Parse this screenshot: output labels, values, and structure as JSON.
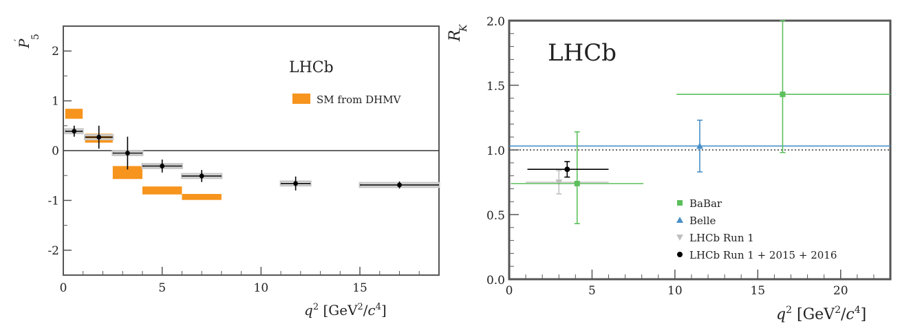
{
  "chart_data": [
    {
      "type": "scatter",
      "title": "",
      "experiment_label": "LHCb",
      "ylabel": "P′5",
      "xlabel": "q² [GeV²/c⁴]",
      "xlim": [
        0,
        19
      ],
      "ylim": [
        -2.5,
        2.5
      ],
      "x_ticks": [
        0,
        5,
        10,
        15
      ],
      "y_ticks": [
        -2,
        -1,
        0,
        1,
        2
      ],
      "zero_line": true,
      "legend": {
        "placement": "top-right",
        "entries": [
          "SM from DHMV"
        ]
      },
      "colors": {
        "data": "#000000",
        "sm_band": "#f7941d",
        "bin_box": "#c8c8c8"
      },
      "data": [
        {
          "x": 0.55,
          "x_lo": 0.1,
          "x_hi": 0.98,
          "y": 0.39,
          "y_err": 0.11
        },
        {
          "x": 1.8,
          "x_lo": 1.1,
          "x_hi": 2.5,
          "y": 0.27,
          "y_err": 0.23
        },
        {
          "x": 3.25,
          "x_lo": 2.5,
          "x_hi": 4.0,
          "y": -0.05,
          "y_err": 0.33
        },
        {
          "x": 5.0,
          "x_lo": 4.0,
          "x_hi": 6.0,
          "y": -0.31,
          "y_err": 0.13
        },
        {
          "x": 7.0,
          "x_lo": 6.0,
          "x_hi": 8.0,
          "y": -0.51,
          "y_err": 0.12
        },
        {
          "x": 11.75,
          "x_lo": 11.0,
          "x_hi": 12.5,
          "y": -0.66,
          "y_err": 0.14
        },
        {
          "x": 17.0,
          "x_lo": 15.0,
          "x_hi": 19.0,
          "y": -0.69,
          "y_err": 0.07
        }
      ],
      "sm_prediction": [
        {
          "x_lo": 0.1,
          "x_hi": 0.98,
          "y_lo": 0.64,
          "y_hi": 0.84
        },
        {
          "x_lo": 1.1,
          "x_hi": 2.5,
          "y_lo": 0.16,
          "y_hi": 0.34
        },
        {
          "x_lo": 2.5,
          "x_hi": 4.0,
          "y_lo": -0.57,
          "y_hi": -0.31
        },
        {
          "x_lo": 4.0,
          "x_hi": 6.0,
          "y_lo": -0.88,
          "y_hi": -0.72
        },
        {
          "x_lo": 6.0,
          "x_hi": 8.0,
          "y_lo": -0.99,
          "y_hi": -0.87
        }
      ]
    },
    {
      "type": "scatter",
      "title": "",
      "experiment_label": "LHCb",
      "ylabel": "RK",
      "xlabel": "q² [GeV²/c⁴]",
      "xlim": [
        0,
        23
      ],
      "ylim": [
        0,
        2
      ],
      "x_ticks": [
        0,
        5,
        10,
        15,
        20
      ],
      "y_ticks": [
        "0.0",
        "0.5",
        "1.0",
        "1.5",
        "2.0"
      ],
      "reference_line": {
        "y": 1.0,
        "style": "dotted"
      },
      "legend": {
        "placement": "bottom-right"
      },
      "series": [
        {
          "name": "BaBar",
          "color": "#5cbf5c",
          "marker": "square",
          "points": [
            {
              "x": 4.1,
              "x_lo": 0.1,
              "x_hi": 8.1,
              "y": 0.74,
              "y_lo": 0.43,
              "y_hi": 1.14
            },
            {
              "x": 16.5,
              "x_lo": 10.1,
              "x_hi": 23.0,
              "y": 1.43,
              "y_lo": 0.98,
              "y_hi": 2.0
            }
          ]
        },
        {
          "name": "Belle",
          "color": "#4a90c8",
          "marker": "triangle-up",
          "points": [
            {
              "x": 11.5,
              "x_lo": 0.0,
              "x_hi": 23.0,
              "y": 1.03,
              "y_lo": 0.83,
              "y_hi": 1.23
            }
          ]
        },
        {
          "name": "LHCb Run 1",
          "color": "#c0c0c0",
          "marker": "triangle-down",
          "points": [
            {
              "x": 3.0,
              "x_lo": 1.0,
              "x_hi": 6.0,
              "y": 0.75,
              "y_lo": 0.66,
              "y_hi": 0.84
            }
          ]
        },
        {
          "name": "LHCb Run 1 + 2015 + 2016",
          "color": "#000000",
          "marker": "circle",
          "points": [
            {
              "x": 3.5,
              "x_lo": 1.1,
              "x_hi": 6.0,
              "y": 0.85,
              "y_lo": 0.79,
              "y_hi": 0.91
            }
          ]
        }
      ]
    }
  ]
}
